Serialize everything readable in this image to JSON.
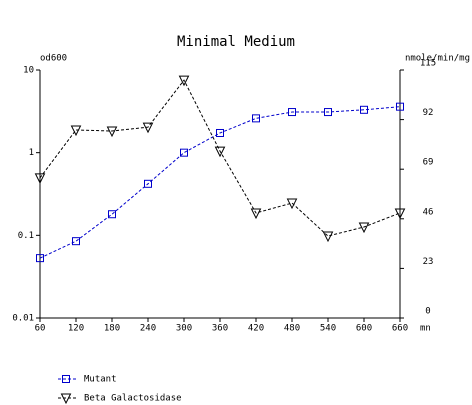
{
  "chart_data": {
    "type": "line",
    "title": "Minimal Medium",
    "ylabel": "od600",
    "y2label": "nmole/min/mg",
    "xlabel": "mn",
    "x": [
      60,
      120,
      180,
      240,
      300,
      360,
      420,
      480,
      540,
      600,
      660
    ],
    "xlim": [
      60,
      660
    ],
    "xticks": [
      60,
      120,
      180,
      240,
      300,
      360,
      420,
      480,
      540,
      600,
      660
    ],
    "ylim": [
      0.01,
      10
    ],
    "yticks": [
      0.01,
      0.1,
      1,
      10
    ],
    "ylog": true,
    "y2lim": [
      0,
      115
    ],
    "y2ticks": [
      0,
      23,
      46,
      69,
      92,
      115
    ],
    "grid": false,
    "series": [
      {
        "name": "Mutant",
        "color": "#0000cc",
        "marker": "square",
        "axis": "y",
        "values": [
          0.053,
          0.085,
          0.18,
          0.42,
          1.0,
          1.73,
          2.6,
          3.1,
          3.1,
          3.3,
          3.6
        ]
      },
      {
        "name": "Beta Galactosidase",
        "color": "#000000",
        "marker": "triangle-down",
        "axis": "y2",
        "values": [
          65,
          87.2,
          86.7,
          88.5,
          110.3,
          77.4,
          48.7,
          53.3,
          38,
          42.2,
          48.7
        ]
      }
    ]
  }
}
